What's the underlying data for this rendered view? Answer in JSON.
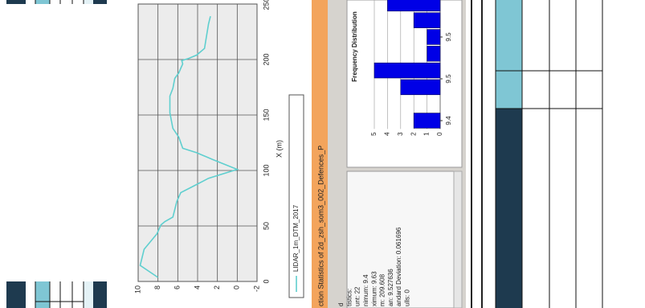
{
  "chart_data": [
    {
      "type": "line",
      "xlabel": "X (m)",
      "x": [
        3.6,
        14.5,
        29,
        43,
        51,
        54,
        58,
        72,
        80,
        85.5,
        93,
        101,
        110,
        116,
        120,
        130,
        138,
        152,
        167,
        174,
        183,
        188,
        192,
        196,
        199,
        201,
        204,
        210,
        232,
        239
      ],
      "series": [
        {
          "name": "LIDAR_1m_DTM_2017",
          "color": "#5fcfcf",
          "values": [
            8.0,
            9.8,
            9.4,
            8.1,
            7.7,
            7.3,
            6.5,
            6.1,
            5.7,
            4.5,
            2.9,
            0.0,
            2.5,
            4.1,
            5.5,
            5.9,
            6.5,
            6.8,
            6.8,
            6.5,
            6.3,
            5.9,
            5.7,
            5.5,
            5.6,
            4.9,
            4.1,
            3.3,
            2.9,
            2.7
          ]
        }
      ],
      "xlim": [
        0,
        250
      ],
      "xticks": [
        0,
        50,
        100,
        150,
        200,
        250
      ],
      "ylim": [
        -2,
        10
      ],
      "yticks": [
        -2,
        0,
        2,
        4,
        6,
        8,
        10
      ],
      "grid": true
    },
    {
      "type": "histogram",
      "title": "Frequency Distribution",
      "bins": [
        9.43,
        9.45,
        9.47,
        9.49,
        9.51,
        9.53,
        9.55,
        9.57,
        9.59
      ],
      "values": [
        2,
        0,
        3,
        5,
        1,
        1,
        2,
        4
      ],
      "color": "#0000e6",
      "xlim": [
        9.43,
        9.585
      ],
      "xticks": [
        {
          "value": 9.44,
          "label": "9.4"
        },
        {
          "value": 9.49,
          "label": "9.5"
        },
        {
          "value": 9.54,
          "label": "9.5"
        }
      ],
      "ylim": [
        0,
        5
      ],
      "yticks": [
        0,
        1,
        2,
        3,
        4,
        5
      ]
    }
  ],
  "stats_panel": {
    "title": "ction Statistics of 2d_zsh_som3_002_Defences_P",
    "lines": [
      "d",
      "tistics:",
      "unt:  22",
      "nimum:  9.4",
      "ximum:  9.63",
      "m:  209.608",
      "an:  9.527636",
      "andard Deviation:  0.061696",
      "ulls:  0"
    ]
  }
}
